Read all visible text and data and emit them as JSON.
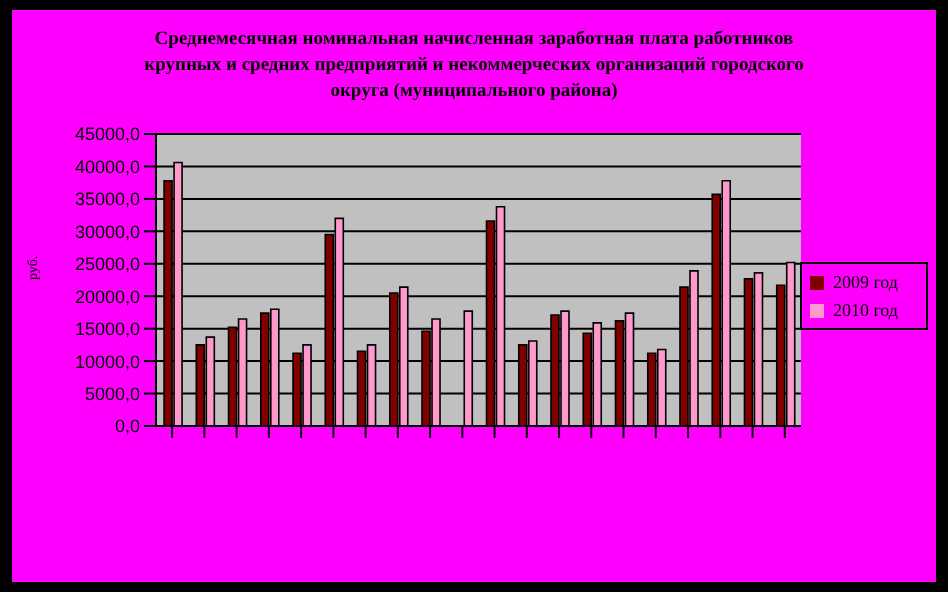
{
  "chart_data": {
    "type": "bar",
    "title": "Среднемесячная номинальная начисленная заработная плата работников крупных и средних предприятий и некоммерческих организаций городского округа (муниципального района)",
    "ylabel": "руб.",
    "categories": [
      null,
      null,
      null,
      null,
      null,
      null,
      null,
      null,
      null,
      null,
      null,
      null,
      null,
      null,
      null,
      null,
      null,
      null,
      null,
      null
    ],
    "series": [
      {
        "name": "2009 год",
        "color": "#800000",
        "values": [
          37800,
          12500,
          15200,
          17400,
          11200,
          29500,
          11500,
          20500,
          14600,
          null,
          31600,
          12500,
          17100,
          14300,
          16200,
          11200,
          21400,
          35700,
          22700,
          21700
        ]
      },
      {
        "name": "2010 год",
        "color": "#ff99cc",
        "values": [
          40600,
          13700,
          16500,
          18000,
          12500,
          32000,
          12500,
          21400,
          16500,
          17700,
          33800,
          13100,
          17700,
          15900,
          17400,
          11800,
          23900,
          37800,
          23600,
          25200
        ]
      }
    ],
    "ylim": [
      0,
      45000
    ],
    "yticks": [
      {
        "value": 0,
        "label": "0,0"
      },
      {
        "value": 5000,
        "label": "5000,0"
      },
      {
        "value": 10000,
        "label": "10000,0"
      },
      {
        "value": 15000,
        "label": "15000,0"
      },
      {
        "value": 20000,
        "label": "20000,0"
      },
      {
        "value": 25000,
        "label": "25000,0"
      },
      {
        "value": 30000,
        "label": "30000,0"
      },
      {
        "value": 35000,
        "label": "35000,0"
      },
      {
        "value": 40000,
        "label": "40000,0"
      },
      {
        "value": 45000,
        "label": "45000,0"
      }
    ],
    "grid": "y",
    "legend": "right"
  }
}
